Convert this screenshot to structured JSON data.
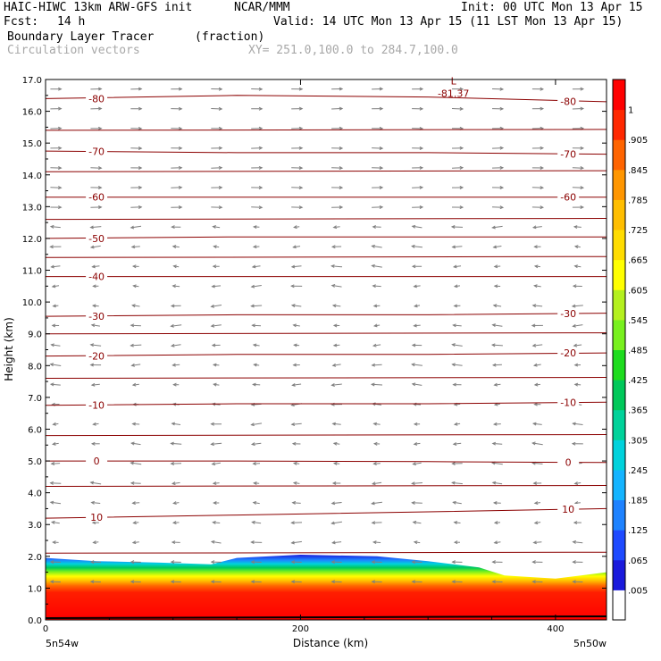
{
  "header": {
    "model": "HAIC-HIWC 13km ARW-GFS init",
    "org": "NCAR/MMM",
    "init": "Init: 00 UTC Mon 13 Apr 15",
    "fcst_label": "Fcst:",
    "fcst_value": "14 h",
    "valid": "Valid: 14 UTC Mon 13 Apr 15 (11 LST Mon 13 Apr 15)",
    "field": "Boundary Layer Tracer",
    "units": "(fraction)",
    "overlay": "Circulation vectors",
    "xsect": "XY= 251.0,100.0 to 284.7,100.0"
  },
  "chart_data": {
    "type": "cross-section",
    "xlabel": "Distance (km)",
    "ylabel": "Height (km)",
    "xlim": [
      0,
      440
    ],
    "ylim": [
      0,
      17
    ],
    "x_ticks": [
      "0",
      "200",
      "400"
    ],
    "x_tick_values": [
      0,
      200,
      400
    ],
    "y_ticks": [
      "0.0",
      "1.0",
      "2.0",
      "3.0",
      "4.0",
      "5.0",
      "6.0",
      "7.0",
      "8.0",
      "9.0",
      "10.0",
      "11.0",
      "12.0",
      "13.0",
      "14.0",
      "15.0",
      "16.0",
      "17.0"
    ],
    "x_end_labels": {
      "left": "5n54w",
      "right": "5n50w"
    },
    "colorbar": {
      "labels": [
        ".005",
        ".065",
        ".125",
        ".185",
        ".245",
        ".305",
        ".365",
        ".425",
        ".485",
        ".545",
        ".605",
        ".665",
        ".725",
        ".785",
        ".845",
        ".905",
        "1"
      ],
      "colors": [
        "#ffffff",
        "#1a1adc",
        "#1e4aff",
        "#1e82ff",
        "#14b4ff",
        "#00d2dc",
        "#00d29a",
        "#00c85a",
        "#1edc1e",
        "#78f01e",
        "#b4f01e",
        "#ffff00",
        "#ffdc00",
        "#ffbe00",
        "#ff9600",
        "#ff6400",
        "#ff2800",
        "#ff0000"
      ]
    },
    "tracer_top_km": [
      {
        "x": 0,
        "h": 1.95
      },
      {
        "x": 40,
        "h": 1.85
      },
      {
        "x": 90,
        "h": 1.8
      },
      {
        "x": 130,
        "h": 1.75
      },
      {
        "x": 150,
        "h": 1.95
      },
      {
        "x": 200,
        "h": 2.05
      },
      {
        "x": 260,
        "h": 2.0
      },
      {
        "x": 300,
        "h": 1.85
      },
      {
        "x": 340,
        "h": 1.65
      },
      {
        "x": 360,
        "h": 1.4
      },
      {
        "x": 400,
        "h": 1.3
      },
      {
        "x": 420,
        "h": 1.4
      },
      {
        "x": 440,
        "h": 1.5
      }
    ],
    "temperature_contours": [
      {
        "value": 10,
        "heights": [
          3.2,
          3.3,
          3.4,
          3.5
        ],
        "labels": [
          "10",
          "10"
        ]
      },
      {
        "value": 0,
        "heights": [
          5.0,
          5.0,
          4.98,
          4.95
        ],
        "labels": [
          "0",
          "0"
        ]
      },
      {
        "value": -10,
        "heights": [
          6.75,
          6.8,
          6.8,
          6.85
        ],
        "labels": [
          "-10",
          "-10"
        ]
      },
      {
        "value": -20,
        "heights": [
          8.3,
          8.35,
          8.35,
          8.4
        ],
        "labels": [
          "-20",
          "-20"
        ]
      },
      {
        "value": -30,
        "heights": [
          9.55,
          9.6,
          9.6,
          9.65
        ],
        "labels": [
          "-30",
          "-30"
        ]
      },
      {
        "value": -40,
        "heights": [
          10.8,
          10.8,
          10.8,
          10.8
        ],
        "labels": [
          "-40"
        ]
      },
      {
        "value": -50,
        "heights": [
          12.0,
          12.05,
          12.05,
          12.05
        ],
        "labels": [
          "-50"
        ]
      },
      {
        "value": -60,
        "heights": [
          13.3,
          13.3,
          13.3,
          13.3
        ],
        "labels": [
          "-60",
          "-60"
        ]
      },
      {
        "value": -70,
        "heights": [
          14.75,
          14.7,
          14.7,
          14.65
        ],
        "labels": [
          "-70",
          "-70"
        ]
      },
      {
        "value": -80,
        "heights": [
          16.4,
          16.5,
          16.45,
          16.3
        ],
        "labels": [
          "-80",
          "-80"
        ]
      }
    ],
    "extra_contour_levels_km": [
      2.1,
      4.2,
      5.8,
      7.6,
      9.0,
      11.4,
      12.6,
      14.1,
      15.4
    ],
    "annotations": [
      {
        "text": "L",
        "x": 320,
        "y": 16.85
      },
      {
        "text": "-81.37",
        "x": 320,
        "y": 16.45
      }
    ]
  }
}
